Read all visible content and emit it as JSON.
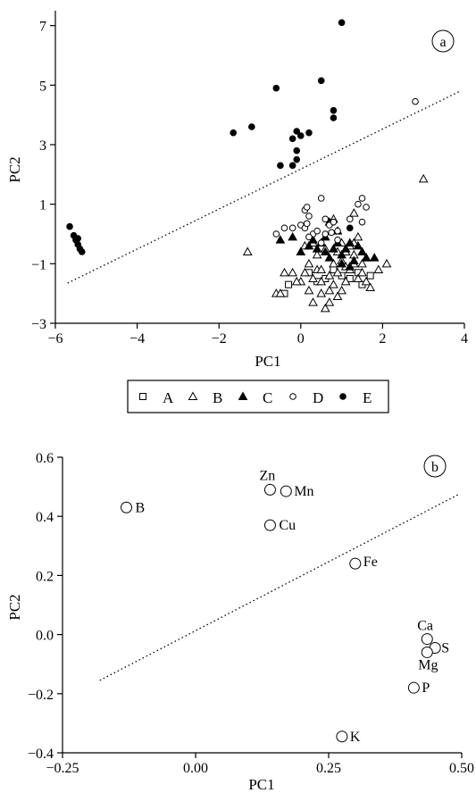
{
  "chart_data": [
    {
      "type": "scatter",
      "panel_label": "a",
      "xlabel": "PC1",
      "ylabel": "PC2",
      "xlim": [
        -6,
        4
      ],
      "ylim": [
        -3,
        7.5
      ],
      "xticks": [
        "−6",
        "−4",
        "−2",
        "0",
        "2",
        "4"
      ],
      "yticks": [
        "−3",
        "−1",
        "1",
        "3",
        "5",
        "7"
      ],
      "xtick_values": [
        -6,
        -4,
        -2,
        0,
        2,
        4
      ],
      "ytick_values": [
        -3,
        -1,
        1,
        3,
        5,
        7
      ],
      "grid": false,
      "legend_position": "bottom",
      "reference_line": {
        "style": "dotted",
        "x": [
          -5.7,
          3.9
        ],
        "y": [
          -1.65,
          4.8
        ]
      },
      "series": [
        {
          "name": "A",
          "marker": "square-open",
          "points": [
            [
              -0.4,
              -2.0
            ],
            [
              -0.3,
              -1.7
            ],
            [
              0.4,
              -1.6
            ],
            [
              0.2,
              -1.3
            ],
            [
              0.8,
              -1.2
            ],
            [
              1.0,
              -1.4
            ],
            [
              1.2,
              -1.5
            ],
            [
              1.5,
              -1.7
            ],
            [
              1.7,
              -1.4
            ],
            [
              0.6,
              -1.5
            ],
            [
              1.4,
              -1.3
            ]
          ]
        },
        {
          "name": "B",
          "marker": "triangle-open",
          "points": [
            [
              3.0,
              1.85
            ],
            [
              -1.3,
              -0.6
            ],
            [
              -0.6,
              -2.0
            ],
            [
              -0.5,
              -2.0
            ],
            [
              -0.4,
              -1.3
            ],
            [
              -0.2,
              -1.3
            ],
            [
              0.0,
              -1.6
            ],
            [
              0.1,
              -1.3
            ],
            [
              0.2,
              -1.9
            ],
            [
              0.3,
              -1.5
            ],
            [
              0.4,
              -1.2
            ],
            [
              0.5,
              -2.0
            ],
            [
              0.5,
              -1.6
            ],
            [
              0.6,
              -2.5
            ],
            [
              0.7,
              -2.3
            ],
            [
              0.7,
              -1.4
            ],
            [
              0.8,
              -1.0
            ],
            [
              0.8,
              -1.7
            ],
            [
              0.9,
              -1.3
            ],
            [
              1.0,
              -0.9
            ],
            [
              1.0,
              -1.9
            ],
            [
              1.1,
              -1.1
            ],
            [
              1.1,
              -1.6
            ],
            [
              1.2,
              -1.2
            ],
            [
              1.3,
              -0.7
            ],
            [
              1.3,
              -1.0
            ],
            [
              1.4,
              -1.5
            ],
            [
              1.5,
              -1.3
            ],
            [
              1.6,
              -1.6
            ],
            [
              1.7,
              -1.8
            ],
            [
              0.1,
              -0.4
            ],
            [
              0.3,
              -0.3
            ],
            [
              0.6,
              -0.5
            ],
            [
              0.9,
              -0.6
            ],
            [
              1.2,
              -0.4
            ],
            [
              1.3,
              -0.3
            ],
            [
              0.8,
              0.5
            ],
            [
              1.3,
              0.7
            ],
            [
              1.5,
              -1.0
            ],
            [
              2.1,
              -1.0
            ],
            [
              1.9,
              -1.2
            ],
            [
              1.0,
              -0.3
            ],
            [
              0.4,
              -0.7
            ],
            [
              0.2,
              -1.0
            ],
            [
              0.7,
              -1.9
            ],
            [
              1.6,
              -0.8
            ],
            [
              0.9,
              -2.1
            ],
            [
              1.1,
              -0.6
            ],
            [
              1.4,
              -0.1
            ],
            [
              0.5,
              -1.2
            ],
            [
              -0.1,
              -1.6
            ],
            [
              0.3,
              -2.3
            ]
          ]
        },
        {
          "name": "C",
          "marker": "triangle-filled",
          "points": [
            [
              -0.5,
              -0.2
            ],
            [
              -0.2,
              -0.1
            ],
            [
              0.0,
              -0.6
            ],
            [
              0.2,
              -0.4
            ],
            [
              0.4,
              -0.5
            ],
            [
              0.5,
              -0.3
            ],
            [
              0.6,
              -0.6
            ],
            [
              0.7,
              -0.8
            ],
            [
              0.8,
              -0.5
            ],
            [
              0.9,
              -0.3
            ],
            [
              1.0,
              -0.7
            ],
            [
              1.1,
              -0.5
            ],
            [
              1.2,
              -0.3
            ],
            [
              1.3,
              -0.9
            ],
            [
              1.4,
              -0.4
            ],
            [
              1.5,
              -0.6
            ],
            [
              1.6,
              -0.8
            ],
            [
              1.8,
              -0.8
            ],
            [
              0.6,
              -0.1
            ],
            [
              0.3,
              -0.2
            ],
            [
              0.9,
              0.1
            ],
            [
              0.7,
              0.4
            ],
            [
              1.0,
              -1.0
            ],
            [
              1.2,
              -1.1
            ]
          ]
        },
        {
          "name": "D",
          "marker": "circle-open",
          "points": [
            [
              2.8,
              4.45
            ],
            [
              -0.6,
              0.0
            ],
            [
              -0.4,
              0.2
            ],
            [
              -0.2,
              0.2
            ],
            [
              0.0,
              0.3
            ],
            [
              0.1,
              0.8
            ],
            [
              0.15,
              0.9
            ],
            [
              0.2,
              0.6
            ],
            [
              0.3,
              0.0
            ],
            [
              0.5,
              1.2
            ],
            [
              0.6,
              0.5
            ],
            [
              0.7,
              0.3
            ],
            [
              0.8,
              0.4
            ],
            [
              0.9,
              0.1
            ],
            [
              1.2,
              0.5
            ],
            [
              1.4,
              1.0
            ],
            [
              1.5,
              1.2
            ],
            [
              1.6,
              0.9
            ],
            [
              0.1,
              0.2
            ],
            [
              0.2,
              -0.1
            ],
            [
              0.4,
              0.1
            ],
            [
              0.5,
              -0.3
            ],
            [
              0.6,
              0.0
            ],
            [
              0.9,
              -0.2
            ],
            [
              1.5,
              0.4
            ],
            [
              0.15,
              0.35
            ],
            [
              0.75,
              0.05
            ]
          ]
        },
        {
          "name": "E",
          "marker": "circle-filled",
          "points": [
            [
              -5.65,
              0.25
            ],
            [
              -5.55,
              -0.05
            ],
            [
              -5.5,
              -0.2
            ],
            [
              -5.45,
              -0.35
            ],
            [
              -5.4,
              -0.5
            ],
            [
              -5.35,
              -0.6
            ],
            [
              -5.45,
              -0.15
            ],
            [
              1.0,
              7.1
            ],
            [
              0.5,
              5.15
            ],
            [
              -0.6,
              4.9
            ],
            [
              0.8,
              4.15
            ],
            [
              0.8,
              3.9
            ],
            [
              -1.2,
              3.6
            ],
            [
              -1.65,
              3.4
            ],
            [
              -0.1,
              3.45
            ],
            [
              0.2,
              3.4
            ],
            [
              0.0,
              3.3
            ],
            [
              -0.2,
              3.2
            ],
            [
              -0.1,
              2.8
            ],
            [
              -0.1,
              2.5
            ],
            [
              -0.2,
              2.3
            ],
            [
              -0.5,
              2.3
            ],
            [
              1.2,
              0.2
            ]
          ]
        }
      ]
    },
    {
      "type": "scatter",
      "panel_label": "b",
      "xlabel": "PC1",
      "ylabel": "PC2",
      "xlim": [
        -0.25,
        0.5
      ],
      "ylim": [
        -0.4,
        0.6
      ],
      "xticks": [
        "−0.25",
        "0.00",
        "0.25",
        "0.50"
      ],
      "yticks": [
        "−0.4",
        "−0.2",
        "0.0",
        "0.2",
        "0.4",
        "0.6"
      ],
      "xtick_values": [
        -0.25,
        0.0,
        0.25,
        0.5
      ],
      "ytick_values": [
        -0.4,
        -0.2,
        0.0,
        0.2,
        0.4,
        0.6
      ],
      "grid": false,
      "reference_line": {
        "style": "dotted",
        "x": [
          -0.18,
          0.495
        ],
        "y": [
          -0.155,
          0.475
        ]
      },
      "points": [
        {
          "label": "B",
          "x": -0.13,
          "y": 0.43
        },
        {
          "label": "Zn",
          "x": 0.14,
          "y": 0.49
        },
        {
          "label": "Mn",
          "x": 0.17,
          "y": 0.485
        },
        {
          "label": "Cu",
          "x": 0.14,
          "y": 0.37
        },
        {
          "label": "Fe",
          "x": 0.3,
          "y": 0.24
        },
        {
          "label": "Ca",
          "x": 0.435,
          "y": -0.015
        },
        {
          "label": "S",
          "x": 0.45,
          "y": -0.045
        },
        {
          "label": "Mg",
          "x": 0.435,
          "y": -0.06
        },
        {
          "label": "P",
          "x": 0.41,
          "y": -0.18
        },
        {
          "label": "K",
          "x": 0.275,
          "y": -0.345
        }
      ]
    }
  ]
}
